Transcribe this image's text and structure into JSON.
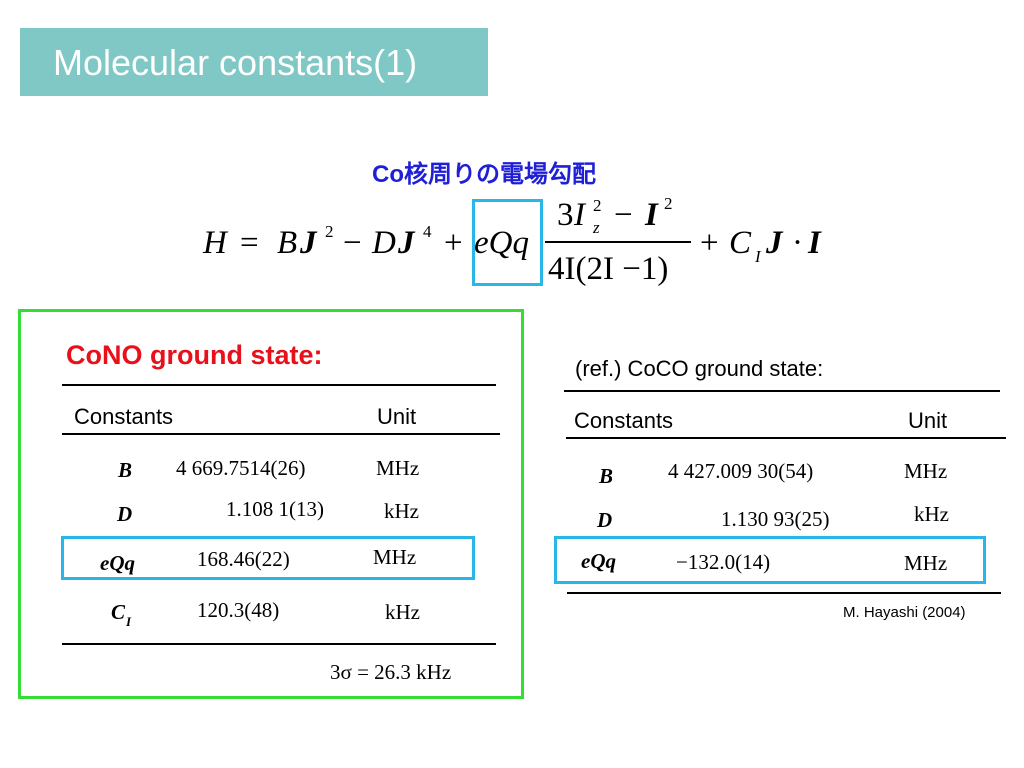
{
  "title": "Molecular constants(1)",
  "subtitle": "Co核周りの電場勾配",
  "formula": {
    "H": "H",
    "eq": "=",
    "B": "B",
    "J": "J",
    "two": "2",
    "minus": "−",
    "D": "D",
    "four": "4",
    "plus": "+",
    "eQq": "eQq",
    "num_3": "3",
    "I": "I",
    "sub_z": "z",
    "den": "4I(2I −1)",
    "C": "C",
    "sub_I": "I",
    "dot": "·"
  },
  "cono": {
    "title": "CoNO ground state:",
    "header": {
      "constants": "Constants",
      "unit": "Unit"
    },
    "rows": [
      {
        "symbol": "B",
        "value": "4 669.7514(26)",
        "unit": "MHz"
      },
      {
        "symbol": "D",
        "value": "1.108 1(13)",
        "unit": "kHz"
      },
      {
        "symbol": "eQq",
        "value": "168.46(22)",
        "unit": "MHz"
      },
      {
        "symbol": "C",
        "sub": "I",
        "value": "120.3(48)",
        "unit": "kHz"
      }
    ],
    "sigma": "3σ = 26.3 kHz"
  },
  "coco": {
    "title": "(ref.) CoCO ground state:",
    "header": {
      "constants": "Constants",
      "unit": "Unit"
    },
    "rows": [
      {
        "symbol": "B",
        "value": "4 427.009 30(54)",
        "unit": "MHz"
      },
      {
        "symbol": "D",
        "value": "1.130 93(25)",
        "unit": "kHz"
      },
      {
        "symbol": "eQq",
        "value": "−132.0(14)",
        "unit": "MHz"
      }
    ],
    "credit": "M. Hayashi (2004)"
  },
  "colors": {
    "title_bg": "#7fc8c6",
    "subtitle": "#1f1fd6",
    "highlight_box": "#29b6e8",
    "panel_border": "#33dd33",
    "cono_title": "#e8101a"
  }
}
